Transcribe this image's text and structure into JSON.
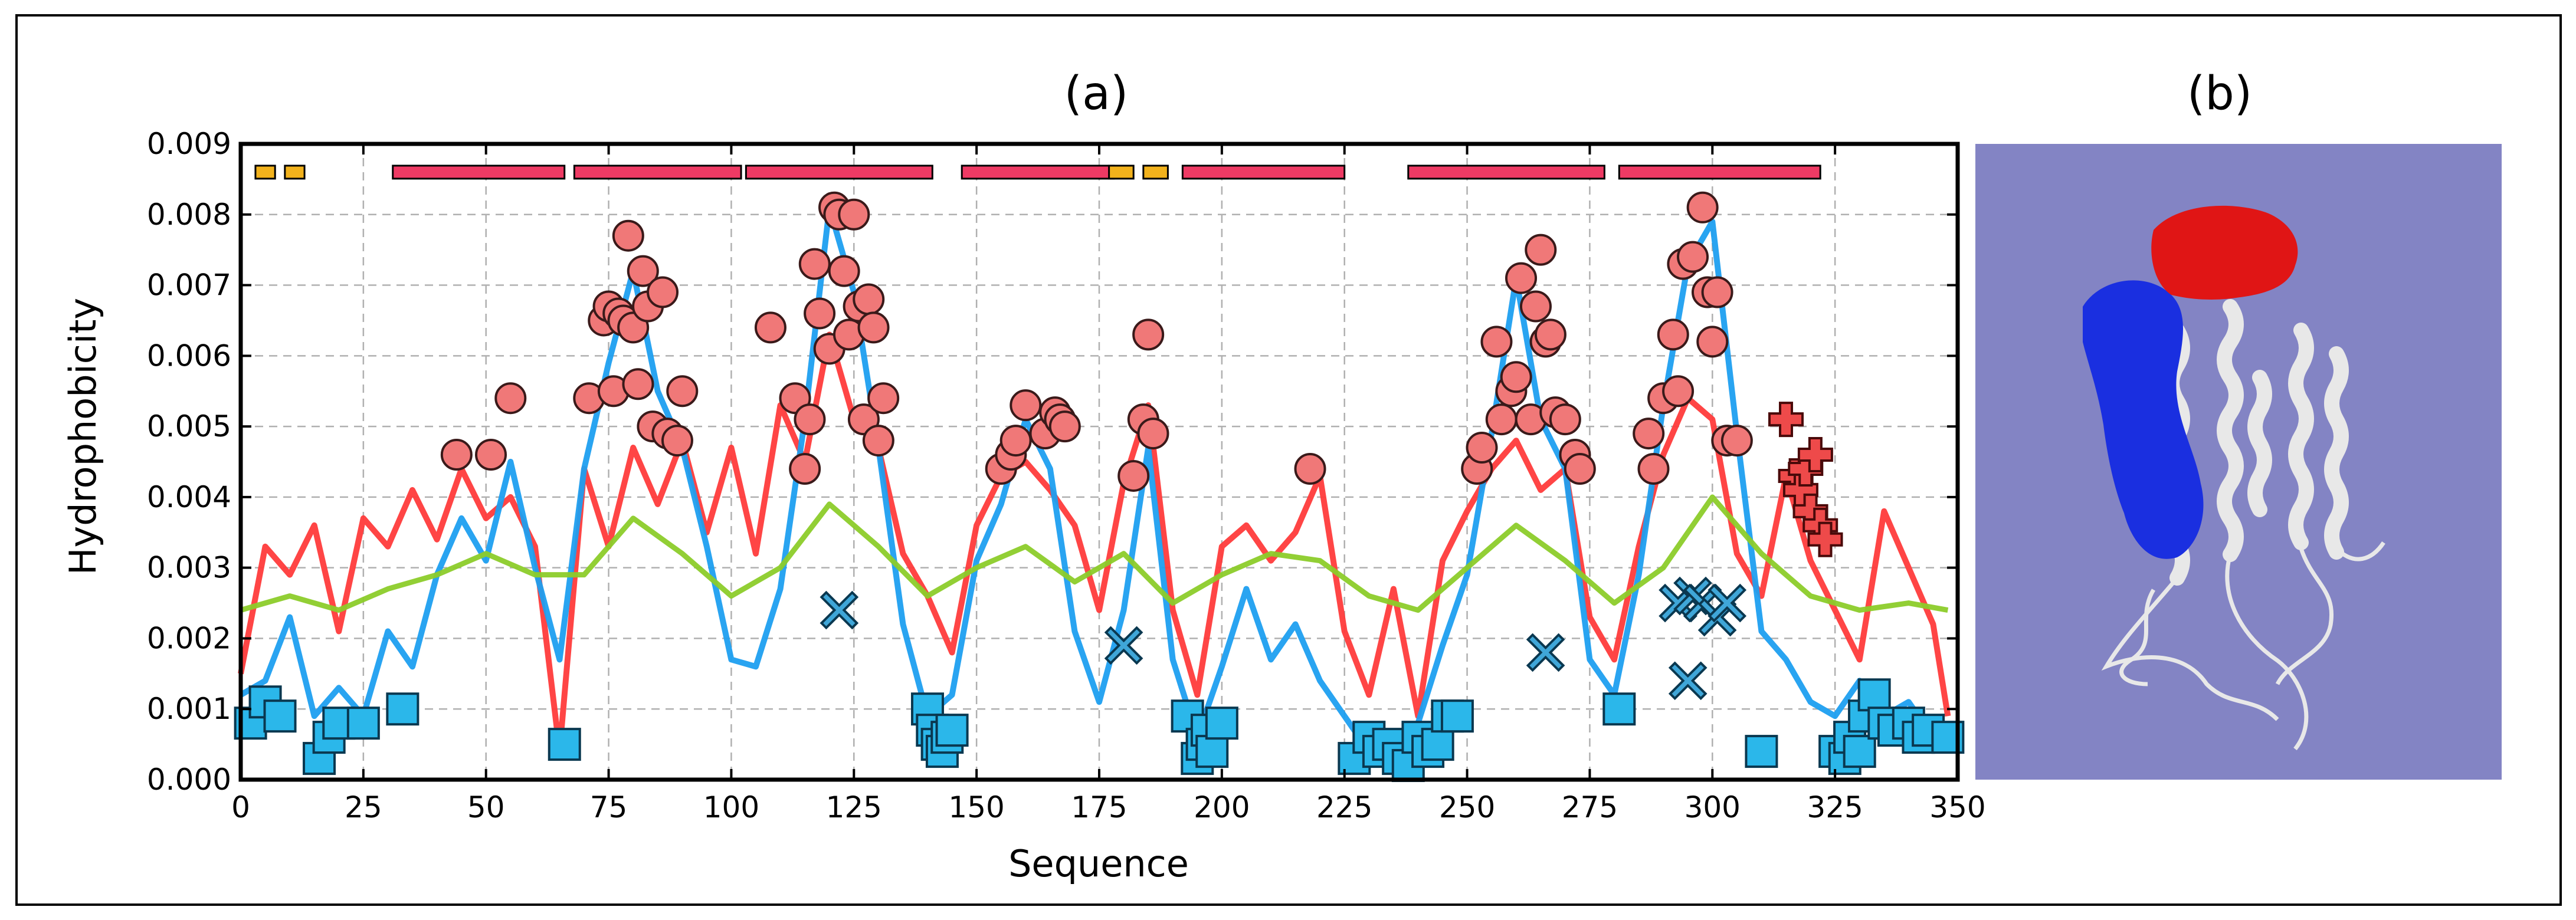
{
  "figure": {
    "panel_a_label": "(a)",
    "panel_b_label": "(b)",
    "colors": {
      "background": "#ffffff",
      "frame": "#000000",
      "red_line": "#ff3b3b",
      "blue_line": "#1e9ff0",
      "green_line": "#8ccc2a",
      "circle_fill": "#f07878",
      "square_fill": "#2bb7ea",
      "x_marker_fill": "#3fa6d8",
      "plus_fill": "#ee4a4a",
      "helix_bar": "#ee3a64",
      "strand_bar": "#f2b21c",
      "structure_bg": "#8384c4",
      "red_domain": "#e01515",
      "blue_domain": "#1a2fe0",
      "white_ribbon": "#e8e8e8"
    }
  },
  "chart_data": {
    "type": "line",
    "title": "(a)",
    "xlabel": "Sequence",
    "ylabel": "Hydrophobicity",
    "xlim": [
      0,
      350
    ],
    "ylim": [
      0,
      0.009
    ],
    "grid": true,
    "xticks": [
      0,
      25,
      50,
      75,
      100,
      125,
      150,
      175,
      200,
      225,
      250,
      275,
      300,
      325,
      350
    ],
    "xtick_labels": [
      "0",
      "25",
      "50",
      "75",
      "100",
      "125",
      "150",
      "175",
      "200",
      "225",
      "250",
      "275",
      "300",
      "325",
      "350"
    ],
    "yticks": [
      0,
      0.001,
      0.002,
      0.003,
      0.004,
      0.005,
      0.006,
      0.007,
      0.008,
      0.009
    ],
    "ytick_labels": [
      "0.000",
      "0.001",
      "0.002",
      "0.003",
      "0.004",
      "0.005",
      "0.006",
      "0.007",
      "0.008",
      "0.009"
    ],
    "series": [
      {
        "name": "red",
        "color": "#ff3b3b",
        "x": [
          0,
          5,
          10,
          15,
          20,
          25,
          30,
          35,
          40,
          45,
          50,
          55,
          60,
          65,
          70,
          75,
          80,
          85,
          90,
          95,
          100,
          105,
          110,
          115,
          120,
          125,
          130,
          135,
          140,
          145,
          150,
          155,
          160,
          165,
          170,
          175,
          180,
          185,
          190,
          195,
          200,
          205,
          210,
          215,
          220,
          225,
          230,
          235,
          240,
          245,
          250,
          255,
          260,
          265,
          270,
          275,
          280,
          285,
          290,
          295,
          300,
          305,
          310,
          315,
          320,
          325,
          330,
          335,
          340,
          345,
          348
        ],
        "values": [
          0.0015,
          0.0033,
          0.0029,
          0.0036,
          0.0021,
          0.0037,
          0.0033,
          0.0041,
          0.0034,
          0.0044,
          0.0037,
          0.004,
          0.0033,
          0.0004,
          0.0044,
          0.0033,
          0.0047,
          0.0039,
          0.0048,
          0.0035,
          0.0047,
          0.0032,
          0.0053,
          0.0045,
          0.0063,
          0.0051,
          0.0047,
          0.0032,
          0.0026,
          0.0018,
          0.0036,
          0.0043,
          0.0045,
          0.0041,
          0.0036,
          0.0024,
          0.0042,
          0.0053,
          0.0024,
          0.0012,
          0.0033,
          0.0036,
          0.0031,
          0.0035,
          0.0043,
          0.0021,
          0.0012,
          0.0027,
          0.0009,
          0.0031,
          0.0038,
          0.0044,
          0.0048,
          0.0041,
          0.0044,
          0.0023,
          0.0017,
          0.0033,
          0.0046,
          0.0054,
          0.0051,
          0.0032,
          0.0026,
          0.0043,
          0.0031,
          0.0024,
          0.0017,
          0.0038,
          0.003,
          0.0022,
          0.0009
        ]
      },
      {
        "name": "blue",
        "color": "#1e9ff0",
        "x": [
          0,
          5,
          10,
          15,
          20,
          25,
          30,
          35,
          40,
          45,
          50,
          55,
          60,
          65,
          70,
          75,
          80,
          85,
          90,
          95,
          100,
          105,
          110,
          115,
          120,
          125,
          130,
          135,
          140,
          145,
          150,
          155,
          160,
          165,
          170,
          175,
          180,
          185,
          190,
          195,
          200,
          205,
          210,
          215,
          220,
          225,
          230,
          235,
          240,
          245,
          250,
          255,
          260,
          265,
          270,
          275,
          280,
          285,
          290,
          295,
          300,
          305,
          310,
          315,
          320,
          325,
          330,
          335,
          340,
          345,
          348
        ],
        "values": [
          0.0012,
          0.0014,
          0.0023,
          0.0009,
          0.0013,
          0.0009,
          0.0021,
          0.0016,
          0.0029,
          0.0037,
          0.0031,
          0.0045,
          0.003,
          0.0017,
          0.0044,
          0.0059,
          0.0072,
          0.0055,
          0.0047,
          0.0033,
          0.0017,
          0.0016,
          0.0027,
          0.0051,
          0.0081,
          0.0069,
          0.0047,
          0.0022,
          0.0009,
          0.0012,
          0.0031,
          0.0039,
          0.0051,
          0.0044,
          0.0021,
          0.0011,
          0.0024,
          0.0047,
          0.0017,
          0.0006,
          0.0016,
          0.0027,
          0.0017,
          0.0022,
          0.0014,
          0.0009,
          0.0004,
          0.0006,
          0.0008,
          0.0019,
          0.0029,
          0.0049,
          0.0071,
          0.0051,
          0.0044,
          0.0017,
          0.0012,
          0.0029,
          0.0053,
          0.0073,
          0.0079,
          0.0049,
          0.0021,
          0.0017,
          0.0011,
          0.0009,
          0.0014,
          0.0009,
          0.0011,
          0.0006,
          0.0008
        ]
      },
      {
        "name": "green",
        "color": "#8ccc2a",
        "x": [
          0,
          10,
          20,
          30,
          40,
          50,
          60,
          70,
          80,
          90,
          100,
          110,
          120,
          130,
          140,
          150,
          160,
          170,
          180,
          190,
          200,
          210,
          220,
          230,
          240,
          250,
          260,
          270,
          280,
          290,
          300,
          310,
          320,
          330,
          340,
          348
        ],
        "values": [
          0.0024,
          0.0026,
          0.0024,
          0.0027,
          0.0029,
          0.0032,
          0.0029,
          0.0029,
          0.0037,
          0.0032,
          0.0026,
          0.003,
          0.0039,
          0.0033,
          0.0026,
          0.003,
          0.0033,
          0.0028,
          0.0032,
          0.0025,
          0.0029,
          0.0032,
          0.0031,
          0.0026,
          0.0024,
          0.003,
          0.0036,
          0.0031,
          0.0025,
          0.003,
          0.004,
          0.0032,
          0.0026,
          0.0024,
          0.0025,
          0.0024
        ]
      }
    ],
    "markers": {
      "circles": {
        "x": [
          44,
          51,
          55,
          71,
          74,
          75,
          76,
          77,
          78,
          79,
          80,
          81,
          82,
          83,
          84,
          86,
          87,
          89,
          90,
          108,
          113,
          115,
          116,
          117,
          118,
          120,
          121,
          122,
          123,
          124,
          125,
          126,
          127,
          128,
          129,
          130,
          131,
          155,
          157,
          158,
          160,
          164,
          166,
          167,
          168,
          182,
          184,
          185,
          186,
          218,
          252,
          253,
          256,
          257,
          259,
          260,
          261,
          263,
          264,
          265,
          266,
          267,
          268,
          270,
          272,
          273,
          287,
          288,
          290,
          292,
          293,
          294,
          296,
          298,
          299,
          300,
          301,
          303,
          305
        ],
        "values": [
          0.0046,
          0.0046,
          0.0054,
          0.0054,
          0.0065,
          0.0067,
          0.0055,
          0.0066,
          0.0065,
          0.0077,
          0.0064,
          0.0056,
          0.0072,
          0.0067,
          0.005,
          0.0069,
          0.0049,
          0.0048,
          0.0055,
          0.0064,
          0.0054,
          0.0044,
          0.0051,
          0.0073,
          0.0066,
          0.0061,
          0.0081,
          0.008,
          0.0072,
          0.0063,
          0.008,
          0.0067,
          0.0051,
          0.0068,
          0.0064,
          0.0048,
          0.0054,
          0.0044,
          0.0046,
          0.0048,
          0.0053,
          0.0049,
          0.0052,
          0.0051,
          0.005,
          0.0043,
          0.0051,
          0.0063,
          0.0049,
          0.0044,
          0.0044,
          0.0047,
          0.0062,
          0.0051,
          0.0055,
          0.0057,
          0.0071,
          0.0051,
          0.0067,
          0.0075,
          0.0062,
          0.0063,
          0.0052,
          0.0051,
          0.0046,
          0.0044,
          0.0049,
          0.0044,
          0.0054,
          0.0063,
          0.0055,
          0.0073,
          0.0074,
          0.0081,
          0.0069,
          0.0062,
          0.0069,
          0.0048,
          0.0048
        ]
      },
      "squares": {
        "x": [
          2,
          5,
          8,
          16,
          18,
          20,
          25,
          33,
          66,
          140,
          141,
          142,
          143,
          144,
          145,
          193,
          195,
          196,
          197,
          198,
          200,
          227,
          230,
          232,
          234,
          236,
          238,
          240,
          242,
          244,
          246,
          248,
          281,
          310,
          325,
          327,
          328,
          330,
          331,
          333,
          335,
          337,
          340,
          342,
          344,
          348
        ],
        "values": [
          0.0008,
          0.0011,
          0.0009,
          0.0003,
          0.0006,
          0.0008,
          0.0008,
          0.001,
          0.0005,
          0.001,
          0.0007,
          0.0005,
          0.0004,
          0.0006,
          0.0007,
          0.0009,
          0.0003,
          0.0005,
          0.0007,
          0.0004,
          0.0008,
          0.0003,
          0.0006,
          0.0004,
          0.0005,
          0.0003,
          0.0002,
          0.0006,
          0.0004,
          0.0005,
          0.0009,
          0.0009,
          0.001,
          0.0004,
          0.0004,
          0.0003,
          0.0006,
          0.0004,
          0.0009,
          0.0012,
          0.0008,
          0.0007,
          0.0008,
          0.0006,
          0.0007,
          0.0006
        ]
      },
      "x_markers": {
        "x": [
          122,
          180,
          266,
          293,
          295,
          296,
          298,
          301,
          303
        ],
        "values": [
          0.0024,
          0.0019,
          0.0018,
          0.0025,
          0.0014,
          0.0026,
          0.0025,
          0.0023,
          0.0025
        ]
      },
      "plus_markers": {
        "x": [
          315,
          317,
          318,
          319,
          320,
          321,
          322,
          323
        ],
        "values": [
          0.0051,
          0.0043,
          0.0041,
          0.0044,
          0.0038,
          0.0046,
          0.0036,
          0.0034
        ]
      }
    },
    "secondary_structure": {
      "helices": [
        [
          31,
          66
        ],
        [
          68,
          102
        ],
        [
          103,
          141
        ],
        [
          147,
          178
        ],
        [
          192,
          225
        ],
        [
          238,
          278
        ],
        [
          281,
          322
        ]
      ],
      "strands": [
        [
          3,
          7
        ],
        [
          9,
          13
        ],
        [
          177,
          182
        ],
        [
          184,
          189
        ]
      ],
      "y": 0.0086
    }
  }
}
